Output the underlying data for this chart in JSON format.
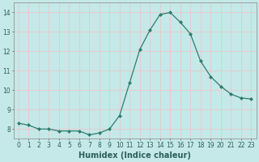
{
  "x": [
    0,
    1,
    2,
    3,
    4,
    5,
    6,
    7,
    8,
    9,
    10,
    11,
    12,
    13,
    14,
    15,
    16,
    17,
    18,
    19,
    20,
    21,
    22,
    23
  ],
  "y": [
    8.3,
    8.2,
    8.0,
    8.0,
    7.9,
    7.9,
    7.9,
    7.7,
    7.8,
    8.0,
    8.7,
    10.4,
    12.1,
    13.1,
    13.9,
    14.0,
    13.5,
    12.9,
    11.5,
    10.7,
    10.2,
    9.8,
    9.6,
    9.55
  ],
  "xlabel": "Humidex (Indice chaleur)",
  "ylim": [
    7.5,
    14.5
  ],
  "xlim": [
    -0.5,
    23.5
  ],
  "bg_color": "#c5e8e8",
  "grid_color_major": "#e8c8c8",
  "grid_color_minor": "#e8c8c8",
  "line_color": "#2e7d6e",
  "marker_color": "#2e7d6e",
  "yticks": [
    8,
    9,
    10,
    11,
    12,
    13,
    14
  ],
  "xtick_labels": [
    "0",
    "1",
    "2",
    "3",
    "4",
    "5",
    "6",
    "7",
    "8",
    "9",
    "10",
    "11",
    "12",
    "13",
    "14",
    "15",
    "16",
    "17",
    "18",
    "19",
    "20",
    "21",
    "22",
    "23"
  ],
  "xlabel_fontsize": 7,
  "tick_fontsize": 5.5
}
